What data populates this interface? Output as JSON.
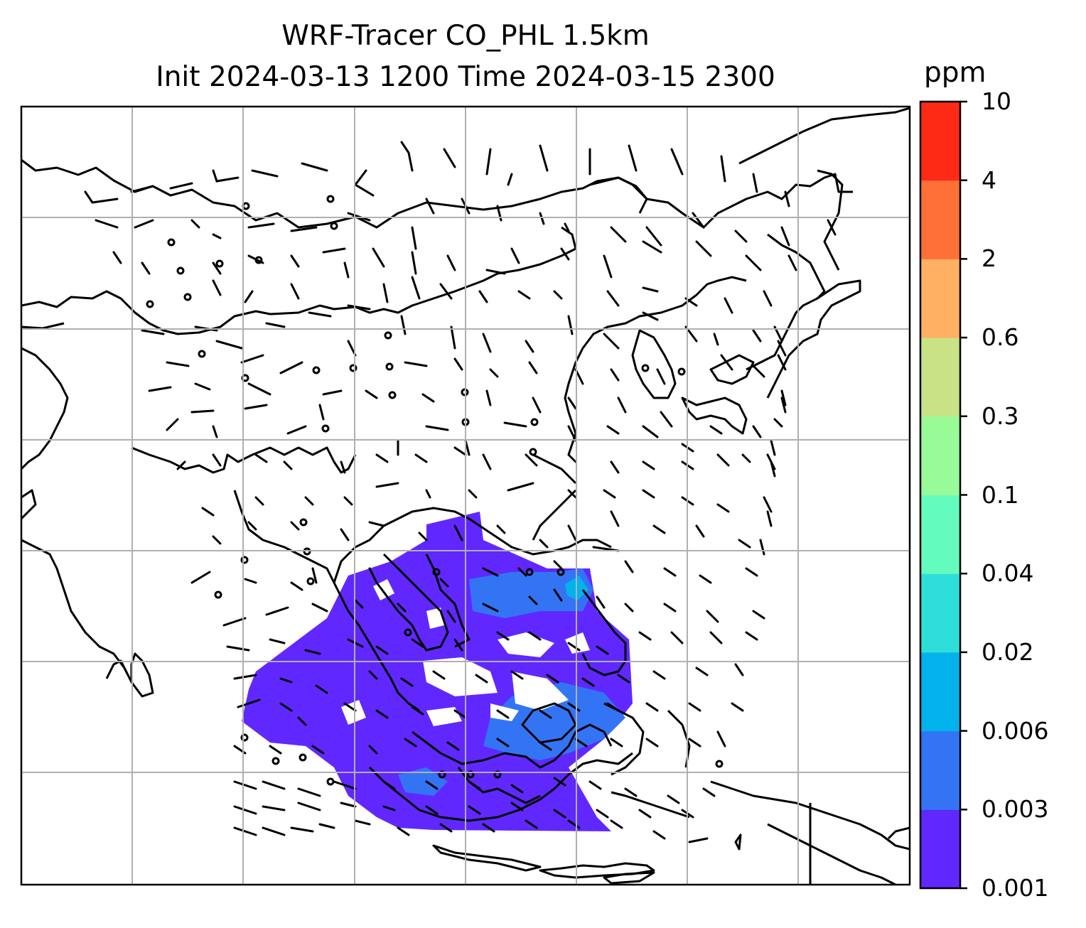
{
  "title": {
    "line1": "WRF-Tracer CO_PHL 1.5km",
    "line2": "Init 2024-03-13 1200 Time 2024-03-15 2300"
  },
  "colorbar": {
    "unit": "ppm",
    "ticks": [
      "0.001",
      "0.003",
      "0.006",
      "0.02",
      "0.04",
      "0.1",
      "0.3",
      "0.6",
      "2",
      "4",
      "10"
    ],
    "colors": [
      "#6028ff",
      "#3374f5",
      "#02b2ec",
      "#2ddfd8",
      "#64fbbf",
      "#98fb98",
      "#cae286",
      "#ffb062",
      "#ff7039",
      "#ff2a16"
    ]
  },
  "map": {
    "gridline_color": "#b0b0b0",
    "coastline_color": "#000000",
    "plume_levels_present": [
      "0.001",
      "0.003",
      "0.006"
    ]
  }
}
